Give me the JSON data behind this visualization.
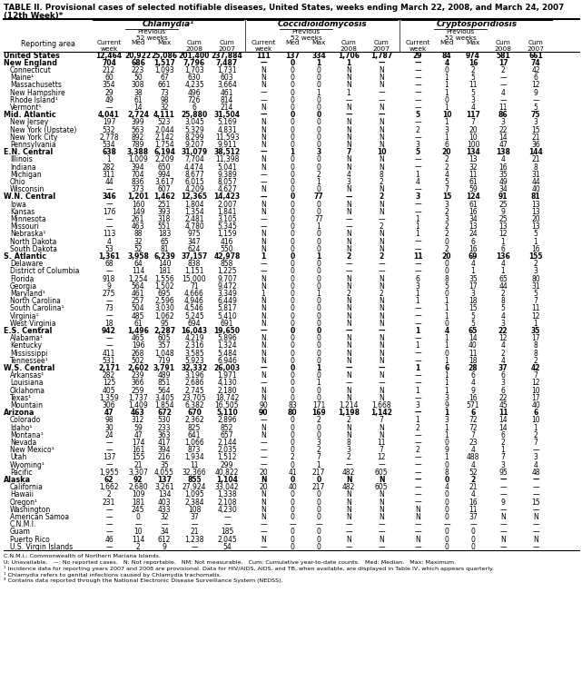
{
  "title_line1": "TABLE II. Provisional cases of selected notifiable diseases, United States, weeks ending March 22, 2008, and March 24, 2007",
  "title_line2": "(12th Week)*",
  "col_groups": [
    "Chlamydia¹",
    "Coccidioidomycosis",
    "Cryptosporidiosis"
  ],
  "rows": [
    [
      "United States",
      "12,464",
      "20,922",
      "25,086",
      "201,400",
      "237,884",
      "111",
      "137",
      "334",
      "1,706",
      "1,787",
      "29",
      "84",
      "974",
      "581",
      "661"
    ],
    [
      "New England",
      "704",
      "686",
      "1,517",
      "7,796",
      "7,487",
      "—",
      "0",
      "1",
      "1",
      "—",
      "—",
      "4",
      "16",
      "17",
      "74"
    ],
    [
      "Connecticut",
      "212",
      "223",
      "1,093",
      "1,703",
      "1,731",
      "N",
      "0",
      "0",
      "N",
      "N",
      "—",
      "0",
      "2",
      "2",
      "42"
    ],
    [
      "Maine¹",
      "60",
      "50",
      "67",
      "630",
      "603",
      "N",
      "0",
      "0",
      "N",
      "N",
      "—",
      "1",
      "5",
      "—",
      "6"
    ],
    [
      "Massachusetts",
      "354",
      "308",
      "661",
      "4,235",
      "3,664",
      "N",
      "0",
      "0",
      "N",
      "N",
      "—",
      "1",
      "11",
      "—",
      "12"
    ],
    [
      "New Hampshire",
      "29",
      "38",
      "73",
      "496",
      "461",
      "—",
      "0",
      "1",
      "1",
      "—",
      "—",
      "1",
      "5",
      "4",
      "9"
    ],
    [
      "Rhode Island¹",
      "49",
      "61",
      "98",
      "726",
      "814",
      "—",
      "0",
      "0",
      "—",
      "—",
      "—",
      "0",
      "3",
      "—",
      "—"
    ],
    [
      "Vermont¹",
      "—",
      "14",
      "32",
      "6",
      "214",
      "N",
      "0",
      "0",
      "N",
      "N",
      "—",
      "1",
      "4",
      "11",
      "5"
    ],
    [
      "Mid. Atlantic",
      "4,041",
      "2,724",
      "4,111",
      "25,880",
      "31,504",
      "—",
      "0",
      "0",
      "—",
      "—",
      "5",
      "10",
      "117",
      "86",
      "75"
    ],
    [
      "New Jersey",
      "197",
      "399",
      "523",
      "3,045",
      "5,169",
      "N",
      "0",
      "0",
      "N",
      "N",
      "—",
      "1",
      "7",
      "3",
      "3"
    ],
    [
      "New York (Upstate)",
      "532",
      "563",
      "2,044",
      "5,329",
      "4,831",
      "N",
      "0",
      "0",
      "N",
      "N",
      "2",
      "3",
      "20",
      "22",
      "15"
    ],
    [
      "New York City",
      "2,778",
      "892",
      "2,142",
      "8,299",
      "11,593",
      "N",
      "0",
      "0",
      "N",
      "N",
      "—",
      "1",
      "10",
      "14",
      "21"
    ],
    [
      "Pennsylvania",
      "534",
      "789",
      "1,754",
      "9,207",
      "9,911",
      "N",
      "0",
      "0",
      "N",
      "N",
      "3",
      "6",
      "100",
      "47",
      "36"
    ],
    [
      "E.N. Central",
      "638",
      "3,388",
      "6,194",
      "31,079",
      "38,512",
      "—",
      "1",
      "3",
      "7",
      "10",
      "5",
      "20",
      "134",
      "138",
      "144"
    ],
    [
      "Illinois",
      "1",
      "1,009",
      "2,209",
      "7,704",
      "11,398",
      "N",
      "0",
      "0",
      "N",
      "N",
      "—",
      "2",
      "13",
      "4",
      "21"
    ],
    [
      "Indiana",
      "282",
      "394",
      "650",
      "4,474",
      "5,041",
      "N",
      "0",
      "0",
      "N",
      "N",
      "—",
      "2",
      "32",
      "16",
      "8"
    ],
    [
      "Michigan",
      "311",
      "704",
      "994",
      "8,677",
      "9,389",
      "—",
      "0",
      "2",
      "4",
      "8",
      "1",
      "4",
      "11",
      "35",
      "31"
    ],
    [
      "Ohio",
      "44",
      "836",
      "3,617",
      "6,015",
      "8,057",
      "—",
      "0",
      "1",
      "3",
      "2",
      "4",
      "5",
      "61",
      "49",
      "44"
    ],
    [
      "Wisconsin",
      "—",
      "373",
      "607",
      "4,209",
      "4,627",
      "N",
      "0",
      "0",
      "N",
      "N",
      "—",
      "7",
      "59",
      "34",
      "40"
    ],
    [
      "W.N. Central",
      "346",
      "1,201",
      "1,462",
      "12,365",
      "14,423",
      "—",
      "0",
      "77",
      "—",
      "2",
      "3",
      "15",
      "124",
      "91",
      "81"
    ],
    [
      "Iowa",
      "—",
      "160",
      "251",
      "1,804",
      "2,007",
      "N",
      "0",
      "0",
      "N",
      "N",
      "—",
      "3",
      "61",
      "25",
      "13"
    ],
    [
      "Kansas",
      "176",
      "149",
      "393",
      "1,354",
      "1,841",
      "N",
      "0",
      "0",
      "N",
      "N",
      "—",
      "2",
      "16",
      "9",
      "13"
    ],
    [
      "Minnesota",
      "—",
      "261",
      "318",
      "2,481",
      "3,105",
      "—",
      "0",
      "77",
      "—",
      "—",
      "1",
      "3",
      "34",
      "25",
      "20"
    ],
    [
      "Missouri",
      "—",
      "463",
      "551",
      "4,780",
      "5,345",
      "—",
      "0",
      "1",
      "—",
      "2",
      "1",
      "2",
      "13",
      "13",
      "13"
    ],
    [
      "Nebraska¹",
      "113",
      "88",
      "183",
      "975",
      "1,159",
      "N",
      "0",
      "0",
      "N",
      "N",
      "1",
      "2",
      "24",
      "12",
      "5"
    ],
    [
      "North Dakota",
      "4",
      "32",
      "65",
      "347",
      "416",
      "N",
      "0",
      "0",
      "N",
      "N",
      "—",
      "0",
      "6",
      "1",
      "1"
    ],
    [
      "South Dakota",
      "53",
      "52",
      "81",
      "624",
      "550",
      "N",
      "0",
      "0",
      "N",
      "N",
      "—",
      "2",
      "16",
      "6",
      "16"
    ],
    [
      "S. Atlantic",
      "1,361",
      "3,958",
      "6,239",
      "37,157",
      "42,978",
      "1",
      "0",
      "1",
      "2",
      "2",
      "11",
      "20",
      "69",
      "136",
      "155"
    ],
    [
      "Delaware",
      "68",
      "64",
      "140",
      "838",
      "858",
      "—",
      "0",
      "0",
      "—",
      "—",
      "—",
      "0",
      "4",
      "4",
      "2"
    ],
    [
      "District of Columbia",
      "—",
      "114",
      "181",
      "1,151",
      "1,225",
      "—",
      "0",
      "0",
      "—",
      "—",
      "—",
      "0",
      "1",
      "1",
      "3"
    ],
    [
      "Florida",
      "918",
      "1,254",
      "1,556",
      "15,000",
      "9,707",
      "N",
      "0",
      "0",
      "N",
      "N",
      "6",
      "8",
      "35",
      "65",
      "80"
    ],
    [
      "Georgia",
      "9",
      "564",
      "1,502",
      "71",
      "9,472",
      "N",
      "0",
      "0",
      "N",
      "N",
      "3",
      "5",
      "17",
      "44",
      "31"
    ],
    [
      "Maryland¹",
      "275",
      "461",
      "695",
      "4,666",
      "3,349",
      "1",
      "0",
      "1",
      "2",
      "2",
      "1",
      "0",
      "3",
      "2",
      "5"
    ],
    [
      "North Carolina",
      "—",
      "257",
      "2,596",
      "4,946",
      "6,449",
      "N",
      "0",
      "0",
      "N",
      "N",
      "1",
      "1",
      "18",
      "8",
      "7"
    ],
    [
      "South Carolina¹",
      "73",
      "504",
      "3,030",
      "4,546",
      "5,817",
      "N",
      "0",
      "0",
      "N",
      "N",
      "—",
      "1",
      "15",
      "5",
      "11"
    ],
    [
      "Virginia¹",
      "—",
      "485",
      "1,062",
      "5,245",
      "5,410",
      "N",
      "0",
      "0",
      "N",
      "N",
      "—",
      "1",
      "5",
      "4",
      "12"
    ],
    [
      "West Virginia",
      "18",
      "61",
      "95",
      "694",
      "691",
      "N",
      "0",
      "0",
      "N",
      "N",
      "—",
      "0",
      "5",
      "3",
      "1"
    ],
    [
      "E.S. Central",
      "942",
      "1,496",
      "2,287",
      "16,043",
      "19,650",
      "—",
      "0",
      "0",
      "—",
      "—",
      "1",
      "4",
      "65",
      "22",
      "35"
    ],
    [
      "Alabama¹",
      "—",
      "465",
      "605",
      "4,219",
      "5,896",
      "N",
      "0",
      "0",
      "N",
      "N",
      "—",
      "1",
      "14",
      "12",
      "17"
    ],
    [
      "Kentucky",
      "—",
      "196",
      "357",
      "2,316",
      "1,324",
      "N",
      "0",
      "0",
      "N",
      "N",
      "1",
      "1",
      "40",
      "4",
      "8"
    ],
    [
      "Mississippi",
      "411",
      "268",
      "1,048",
      "3,585",
      "5,484",
      "N",
      "0",
      "0",
      "N",
      "N",
      "—",
      "0",
      "11",
      "2",
      "8"
    ],
    [
      "Tennessee¹",
      "531",
      "502",
      "719",
      "5,923",
      "6,946",
      "N",
      "0",
      "0",
      "N",
      "N",
      "—",
      "1",
      "18",
      "4",
      "2"
    ],
    [
      "W.S. Central",
      "2,171",
      "2,602",
      "3,791",
      "32,332",
      "26,003",
      "—",
      "0",
      "1",
      "—",
      "—",
      "1",
      "6",
      "28",
      "37",
      "42"
    ],
    [
      "Arkansas¹",
      "282",
      "239",
      "489",
      "3,196",
      "1,971",
      "N",
      "0",
      "0",
      "N",
      "N",
      "—",
      "1",
      "6",
      "6",
      "7"
    ],
    [
      "Louisiana",
      "125",
      "366",
      "851",
      "2,686",
      "4,130",
      "—",
      "0",
      "1",
      "—",
      "—",
      "—",
      "1",
      "4",
      "3",
      "12"
    ],
    [
      "Oklahoma",
      "405",
      "259",
      "564",
      "2,745",
      "2,180",
      "N",
      "0",
      "0",
      "N",
      "N",
      "1",
      "1",
      "9",
      "6",
      "10"
    ],
    [
      "Texas¹",
      "1,359",
      "1,737",
      "3,405",
      "23,705",
      "18,742",
      "N",
      "0",
      "0",
      "N",
      "N",
      "—",
      "3",
      "16",
      "22",
      "17"
    ],
    [
      "Mountain",
      "306",
      "1,409",
      "1,854",
      "6,382",
      "16,505",
      "90",
      "83",
      "171",
      "1,214",
      "1,668",
      "3",
      "9",
      "571",
      "45",
      "40"
    ],
    [
      "Arizona",
      "47",
      "463",
      "672",
      "670",
      "5,110",
      "90",
      "80",
      "169",
      "1,198",
      "1,142",
      "—",
      "1",
      "6",
      "11",
      "6"
    ],
    [
      "Colorado",
      "98",
      "312",
      "530",
      "2,362",
      "2,896",
      "—",
      "0",
      "2",
      "2",
      "7",
      "1",
      "3",
      "72",
      "14",
      "10"
    ],
    [
      "Idaho¹",
      "30",
      "59",
      "233",
      "825",
      "852",
      "N",
      "0",
      "0",
      "N",
      "N",
      "2",
      "1",
      "72",
      "14",
      "1"
    ],
    [
      "Montana¹",
      "24",
      "47",
      "363",
      "641",
      "657",
      "N",
      "0",
      "0",
      "N",
      "N",
      "—",
      "1",
      "7",
      "6",
      "2"
    ],
    [
      "Nevada",
      "—",
      "174",
      "417",
      "1,066",
      "2,144",
      "—",
      "0",
      "3",
      "8",
      "11",
      "—",
      "0",
      "23",
      "2",
      "7"
    ],
    [
      "New Mexico¹",
      "—",
      "161",
      "394",
      "873",
      "2,035",
      "—",
      "0",
      "2",
      "3",
      "7",
      "2",
      "9",
      "4",
      "1"
    ],
    [
      "Utah",
      "137",
      "155",
      "216",
      "1,934",
      "1,512",
      "—",
      "2",
      "7",
      "2",
      "12",
      "—",
      "1",
      "488",
      "7",
      "3"
    ],
    [
      "Wyoming¹",
      "—",
      "21",
      "35",
      "11",
      "299",
      "—",
      "0",
      "1",
      "—",
      "—",
      "—",
      "0",
      "4",
      "3",
      "4"
    ],
    [
      "Pacific",
      "1,955",
      "3,307",
      "4,055",
      "32,366",
      "40,822",
      "20",
      "41",
      "217",
      "482",
      "605",
      "—",
      "8",
      "52",
      "95",
      "48"
    ],
    [
      "Alaska",
      "62",
      "92",
      "137",
      "855",
      "1,104",
      "N",
      "0",
      "0",
      "N",
      "N",
      "—",
      "0",
      "2",
      "—",
      "—"
    ],
    [
      "California",
      "1,662",
      "2,680",
      "3,261",
      "27,924",
      "33,042",
      "20",
      "40",
      "217",
      "482",
      "605",
      "—",
      "4",
      "21",
      "—",
      "—"
    ],
    [
      "Hawaii",
      "2",
      "109",
      "134",
      "1,095",
      "1,338",
      "N",
      "0",
      "0",
      "N",
      "N",
      "—",
      "0",
      "4",
      "—",
      "—"
    ],
    [
      "Oregon¹",
      "231",
      "181",
      "403",
      "2,384",
      "2,108",
      "N",
      "0",
      "0",
      "N",
      "N",
      "—",
      "0",
      "16",
      "9",
      "15"
    ],
    [
      "Washington",
      "—",
      "245",
      "433",
      "108",
      "4,230",
      "N",
      "0",
      "0",
      "N",
      "N",
      "N",
      "0",
      "11",
      "—",
      "—"
    ],
    [
      "American Samoa",
      "—",
      "0",
      "32",
      "37",
      "—",
      "N",
      "0",
      "0",
      "N",
      "N",
      "N",
      "0",
      "37",
      "N",
      "N"
    ],
    [
      "C.N.M.I.",
      "—",
      "—",
      "—",
      "—",
      "—",
      "—",
      "—",
      "—",
      "—",
      "—",
      "—",
      "—",
      "—",
      "—",
      "—"
    ],
    [
      "Guam",
      "—",
      "10",
      "34",
      "21",
      "185",
      "—",
      "0",
      "0",
      "—",
      "—",
      "—",
      "0",
      "0",
      "—",
      "—"
    ],
    [
      "Puerto Rico",
      "46",
      "114",
      "612",
      "1,238",
      "2,045",
      "N",
      "0",
      "0",
      "N",
      "N",
      "N",
      "0",
      "0",
      "N",
      "N"
    ],
    [
      "U.S. Virgin Islands",
      "—",
      "2",
      "9",
      "—",
      "54",
      "—",
      "0",
      "0",
      "—",
      "—",
      "—",
      "0",
      "0",
      "—",
      "—"
    ]
  ],
  "bold_rows": [
    0,
    1,
    8,
    13,
    19,
    27,
    37,
    42,
    48,
    57
  ],
  "footer_lines": [
    "C.N.M.I.: Commonwealth of Northern Mariana Islands.",
    "U: Unavailable.   —: No reported cases.   N: Not reportable.   NM: Not measurable.   Cum: Cumulative year-to-date counts.   Med: Median.   Max: Maximum.",
    "¹ Incidence data for reporting years 2007 and 2008 are provisional. Data for HIV/AIDS, AIDS, and TB, when available, are displayed in Table IV, which appears quarterly.",
    "¹ Chlamydia refers to genital infections caused by Chlamydia trachomatis.",
    "² Contains data reported through the National Electronic Disease Surveillance System (NEDSS)."
  ]
}
